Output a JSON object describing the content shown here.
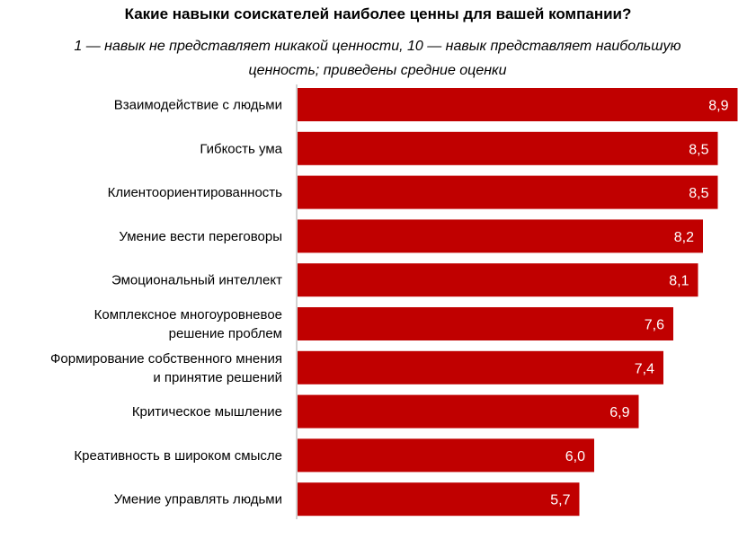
{
  "chart_data": {
    "type": "bar",
    "orientation": "horizontal",
    "title": "Какие навыки соискателей наиболее ценны для вашей компании?",
    "subtitle": "1 — навык не представляет никакой ценности, 10 — навык представляет наибольшую ценность; приведены средние оценки",
    "categories": [
      [
        "Взаимодействие с людьми"
      ],
      [
        "Гибкость ума"
      ],
      [
        "Клиентоориентированность"
      ],
      [
        "Умение вести переговоры"
      ],
      [
        "Эмоциональный интеллект"
      ],
      [
        "Комплексное многоуровневое",
        "решение проблем"
      ],
      [
        "Формирование собственного мнения",
        "и принятие решений"
      ],
      [
        "Критическое мышление"
      ],
      [
        "Креативность в широком смысле"
      ],
      [
        "Умение управлять людьми"
      ]
    ],
    "values": [
      8.9,
      8.5,
      8.5,
      8.2,
      8.1,
      7.6,
      7.4,
      6.9,
      6.0,
      5.7
    ],
    "value_labels": [
      "8,9",
      "8,5",
      "8,5",
      "8,2",
      "8,1",
      "7,6",
      "7,4",
      "6,9",
      "6,0",
      "5,7"
    ],
    "bar_color": "#c00000",
    "grid": false,
    "legend": "none"
  }
}
